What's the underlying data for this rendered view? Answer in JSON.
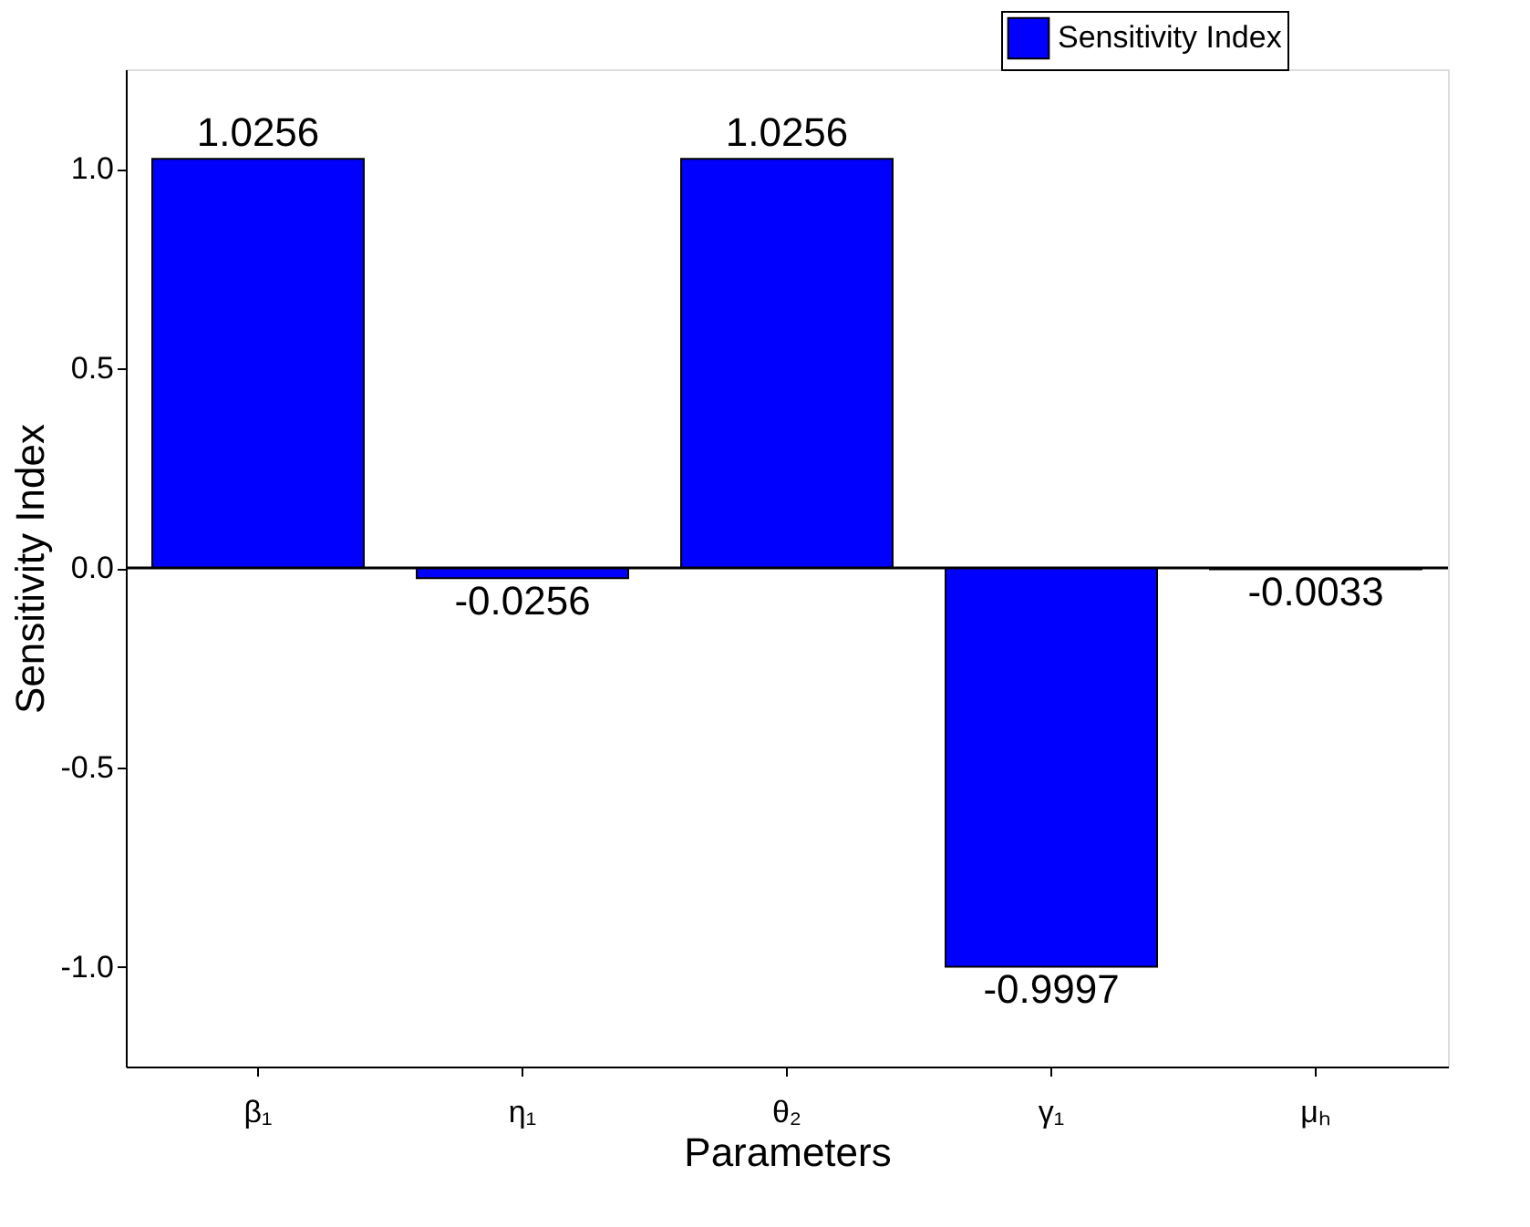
{
  "chart_data": {
    "type": "bar",
    "xlabel": "Parameters",
    "ylabel": "Sensitivity Index",
    "categories": [
      "β₁",
      "η₁",
      "θ₂",
      "γ₁",
      "μₕ"
    ],
    "series": [
      {
        "name": "Sensitivity Index",
        "color": "#0000ff",
        "values": [
          1.0256,
          -0.0256,
          1.0256,
          -0.9997,
          -0.0033
        ]
      }
    ],
    "ylim": [
      -1.25,
      1.25
    ],
    "yticks": [
      {
        "value": -1,
        "label": "-1.0"
      },
      {
        "value": -0.5,
        "label": "-0.5"
      },
      {
        "value": 0,
        "label": "0.0"
      },
      {
        "value": 0.5,
        "label": "0.5"
      },
      {
        "value": 1,
        "label": "1.0"
      }
    ],
    "ref_lines": [
      {
        "axis": "y",
        "value": 0,
        "color": "#000000"
      }
    ],
    "data_labels": true,
    "grid": false,
    "legend": "top right"
  }
}
